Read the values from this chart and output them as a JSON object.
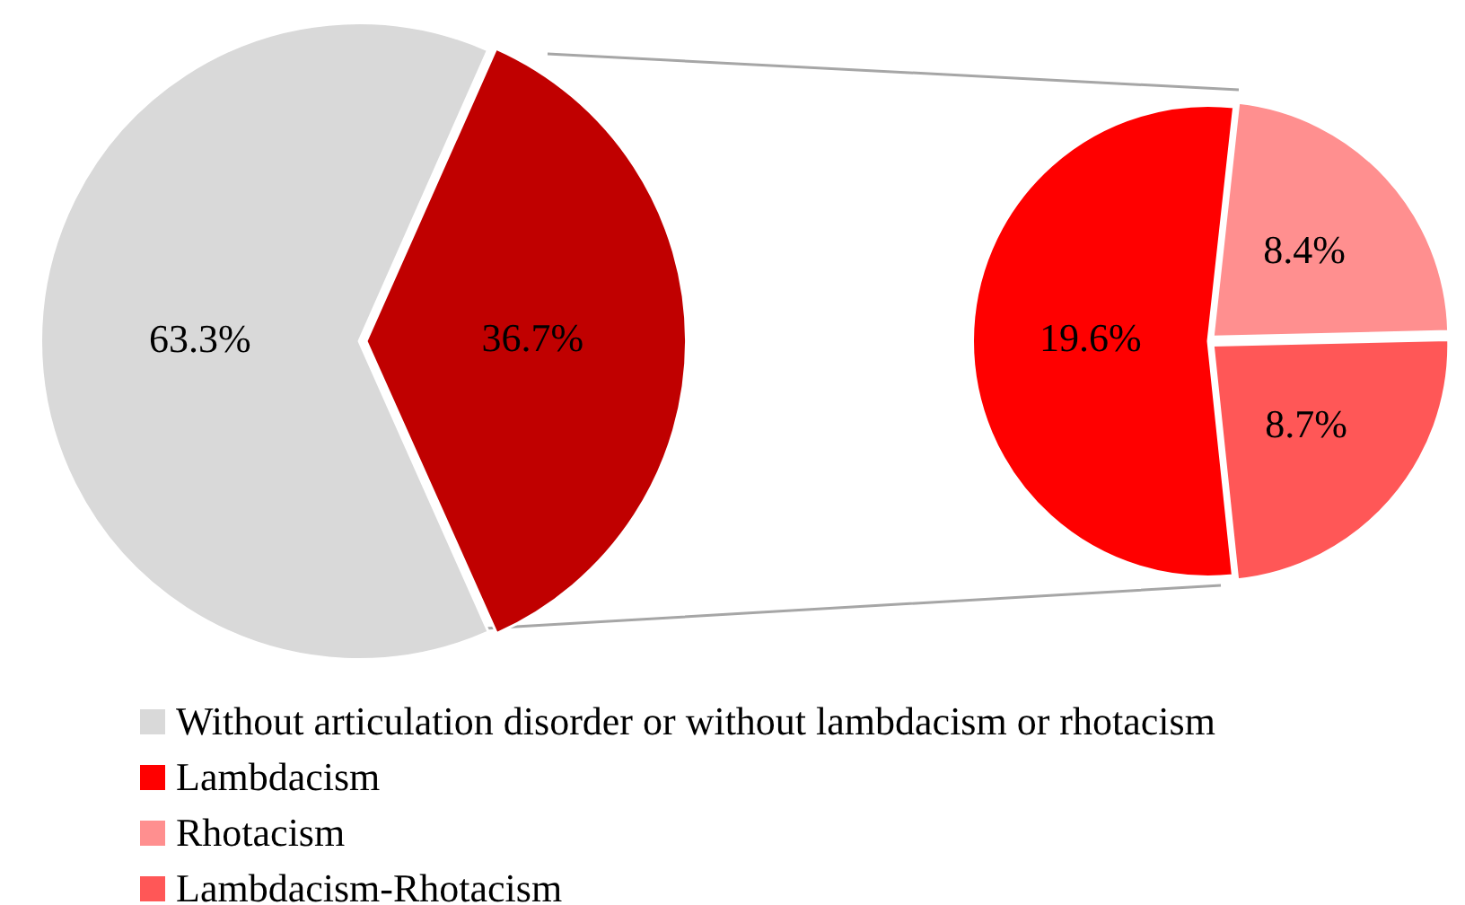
{
  "chart_data": [
    {
      "type": "pie",
      "categories": [
        "Without articulation disorder or without lambdacism or rhotacism",
        null
      ],
      "values": [
        63.3,
        36.7
      ],
      "colors": [
        "#d9d9d9",
        "#c00000"
      ],
      "value_labels": [
        "63.3%",
        "36.7%"
      ],
      "legend": "bottom"
    },
    {
      "type": "pie",
      "categories": [
        "Lambdacism",
        "Rhotacism",
        "Lambdacism-Rhotacism"
      ],
      "values": [
        19.6,
        8.4,
        8.7
      ],
      "colors": [
        "#ff0000",
        "#ff8f8f",
        "#ff5757"
      ],
      "value_labels": [
        "19.6%",
        "8.4%",
        "8.7%"
      ],
      "legend": "bottom"
    }
  ]
}
